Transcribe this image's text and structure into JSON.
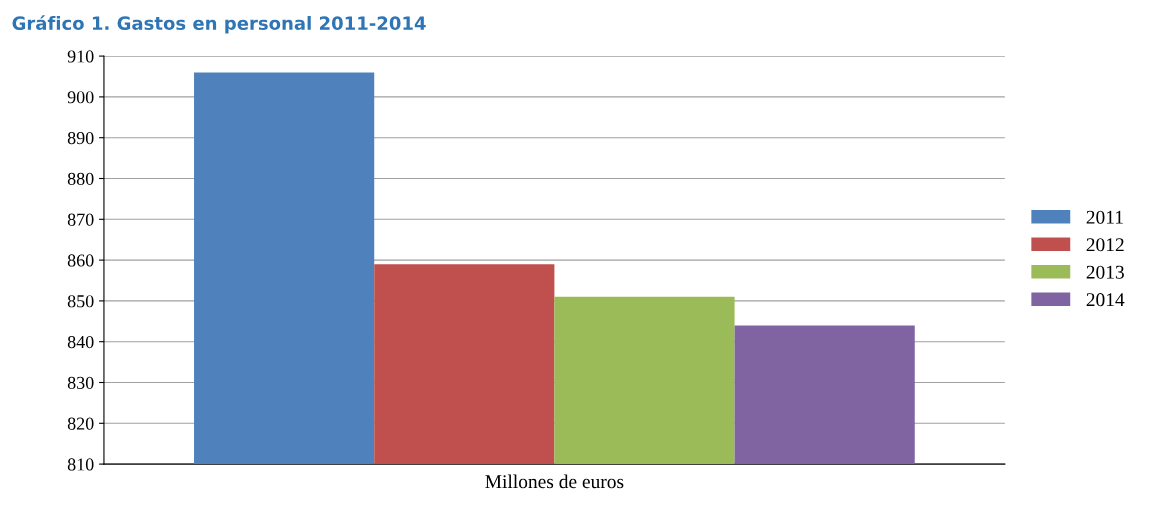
{
  "chart_data": {
    "type": "bar",
    "title": "Gráfico 1. Gastos en personal 2011-2014",
    "xlabel": "Millones de euros",
    "categories": [
      null
    ],
    "series": [
      {
        "name": "2011",
        "color": "#4f81bd",
        "values": [
          906
        ]
      },
      {
        "name": "2012",
        "color": "#c0504d",
        "values": [
          859
        ]
      },
      {
        "name": "2013",
        "color": "#9bbb59",
        "values": [
          851
        ]
      },
      {
        "name": "2014",
        "color": "#8064a2",
        "values": [
          844
        ]
      }
    ],
    "ylim": [
      810,
      910
    ],
    "yticks": [
      810,
      820,
      830,
      840,
      850,
      860,
      870,
      880,
      890,
      900,
      910
    ],
    "grid": "y",
    "legend": "right"
  }
}
